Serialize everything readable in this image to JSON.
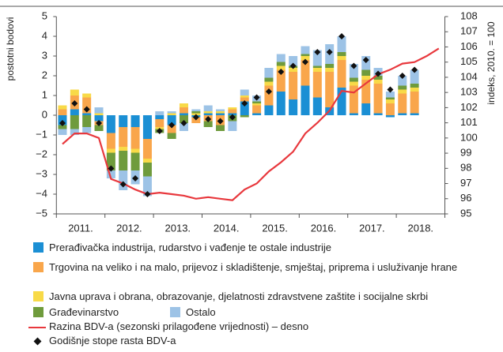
{
  "chart_data": {
    "type": "bar",
    "ylabel": "postotni bodovi",
    "y2label": "indeks, 2010. = 100",
    "categories": [
      null,
      "2011.",
      null,
      null,
      null,
      "2012.",
      null,
      null,
      null,
      "2013.",
      null,
      null,
      null,
      "2014.",
      null,
      null,
      null,
      "2015.",
      null,
      null,
      null,
      "2016.",
      null,
      null,
      null,
      "2017.",
      null,
      null,
      null,
      "2018.",
      null,
      null
    ],
    "ylim": [
      -5,
      5
    ],
    "yticks": [
      {
        "value": -5,
        "label": "−5"
      },
      {
        "value": -4,
        "label": "−4"
      },
      {
        "value": -3,
        "label": "−3"
      },
      {
        "value": -2,
        "label": "−2"
      },
      {
        "value": -1,
        "label": "−1"
      },
      0,
      1,
      2,
      3,
      4,
      5
    ],
    "y2lim": [
      95,
      108
    ],
    "y2ticks": [
      95,
      96,
      97,
      98,
      99,
      100,
      101,
      102,
      103,
      104,
      105,
      106,
      107,
      108
    ],
    "series": [
      {
        "name": "Prerađivačka industrija, rudarstvo i vađenje te ostale industrije",
        "color": "#1b8fd4",
        "values": [
          -0.5,
          0.3,
          0.1,
          -0.3,
          -0.9,
          -0.6,
          -0.6,
          -1.2,
          -0.2,
          -0.5,
          0.1,
          -0.1,
          0.1,
          0.1,
          0.1,
          0.7,
          0.1,
          0.5,
          1.2,
          0.8,
          1.5,
          0.9,
          0.4,
          1.4,
          0.1,
          0.6,
          0.1,
          -0.1,
          0.1,
          0.1,
          null,
          null
        ]
      },
      {
        "name": "Trgovina na veliko i na malo, prijevoz i skladištenje, smještaj, priprema i usluživanje hrane",
        "color": "#f9a64b",
        "values": [
          0.3,
          0.7,
          0.8,
          -0.2,
          -0.8,
          -1.0,
          -1.1,
          -1.0,
          -0.4,
          -0.4,
          0.3,
          -0.3,
          -0.3,
          -0.5,
          0.2,
          0.2,
          0.4,
          1.0,
          1.1,
          1.4,
          1.3,
          1.3,
          1.8,
          1.4,
          1.4,
          1.2,
          1.5,
          0.6,
          1.0,
          1.1,
          null,
          null
        ]
      },
      {
        "name": "Javna uprava i obrana, obrazovanje, djelatnosti zdravstvene zaštite i socijalne skrbi",
        "color": "#f8da48",
        "values": [
          0.2,
          0.3,
          0.2,
          0.1,
          -0.2,
          -0.2,
          -0.2,
          -0.2,
          -0.1,
          0.1,
          0.2,
          0.1,
          0.1,
          0.1,
          0.1,
          0.1,
          0.1,
          0.2,
          0.2,
          0.2,
          0.2,
          0.2,
          0.2,
          0.2,
          0.2,
          0.2,
          0.2,
          0.2,
          0.2,
          0.2,
          null,
          null
        ]
      },
      {
        "name": "Građevinarstvo",
        "color": "#6f9b3c",
        "values": [
          -0.2,
          -0.7,
          -0.6,
          -0.3,
          -0.9,
          -1.0,
          -0.9,
          -0.7,
          -0.2,
          -0.3,
          -0.4,
          0.1,
          -0.3,
          -0.3,
          -0.3,
          -0.1,
          0.1,
          0.2,
          0.2,
          0.1,
          0.1,
          0.1,
          0.2,
          0.2,
          0.2,
          0.3,
          0.2,
          0.1,
          0.2,
          0.2,
          null,
          null
        ]
      },
      {
        "name": "Ostalo",
        "color": "#9dc3e6",
        "values": [
          -0.3,
          -0.3,
          -0.3,
          0.3,
          -0.4,
          -1.0,
          -0.7,
          -1.0,
          0.2,
          0.1,
          -0.4,
          0.1,
          0.3,
          0.1,
          -0.5,
          0.3,
          0.3,
          0.5,
          0.4,
          0.5,
          0.4,
          0.8,
          1.0,
          0.8,
          0.7,
          0.7,
          0.4,
          0.3,
          0.5,
          0.7,
          null,
          null
        ]
      },
      {
        "name": "Razina BDV-a (sezonski prilagođene vrijednosti) – desno",
        "color": "#e8383d",
        "type": "line",
        "axis": "y2",
        "values": [
          99.6,
          100.3,
          100.3,
          100.0,
          97.3,
          97.0,
          96.6,
          96.3,
          96.4,
          96.3,
          96.2,
          96.0,
          96.1,
          96.0,
          95.9,
          96.6,
          97.0,
          97.8,
          98.4,
          99.1,
          100.3,
          101.0,
          101.8,
          103.1,
          103.0,
          103.6,
          104.2,
          104.5,
          104.9,
          105.0,
          105.4,
          105.9
        ]
      },
      {
        "name": "Godišnje stope rasta BDV-a",
        "color": "#111111",
        "type": "scatter",
        "values": [
          -0.4,
          0.6,
          0.3,
          -0.4,
          -2.7,
          -3.5,
          -3.2,
          -4.0,
          -0.8,
          -0.5,
          -0.4,
          -0.1,
          -0.2,
          -0.3,
          -0.1,
          0.6,
          0.9,
          1.2,
          2.2,
          2.5,
          2.7,
          3.2,
          3.2,
          4.0,
          2.5,
          2.8,
          2.1,
          1.3,
          2.0,
          2.3,
          null,
          null
        ]
      }
    ]
  }
}
